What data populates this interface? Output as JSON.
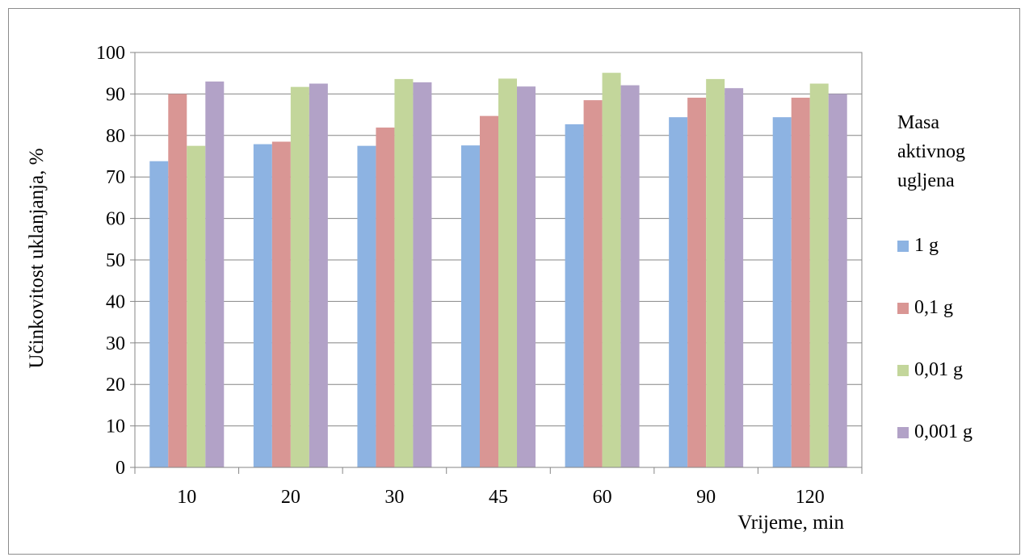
{
  "chart_data": {
    "type": "bar",
    "title": "",
    "xlabel": "Vrijeme, min",
    "ylabel": "Učinkovitost uklanjanja, %",
    "ylim": [
      0,
      100
    ],
    "yticks": [
      "0",
      "10",
      "20",
      "30",
      "40",
      "50",
      "60",
      "70",
      "80",
      "90",
      "100"
    ],
    "grid": true,
    "legend_title": [
      "Masa",
      "aktivnog",
      "ugljena"
    ],
    "legend_position": "right",
    "categories": [
      "10",
      "20",
      "30",
      "45",
      "60",
      "90",
      "120"
    ],
    "series": [
      {
        "name": "1 g",
        "color": "#8DB3E2",
        "values": [
          73.8,
          77.9,
          77.5,
          77.6,
          82.7,
          84.4,
          84.4
        ]
      },
      {
        "name": "0,1 g",
        "color": "#D99694",
        "values": [
          90.0,
          78.5,
          81.9,
          84.7,
          88.5,
          89.1,
          89.1
        ]
      },
      {
        "name": "0,01 g",
        "color": "#C3D69B",
        "values": [
          77.5,
          91.7,
          93.6,
          93.7,
          95.1,
          93.6,
          92.5
        ]
      },
      {
        "name": "0,001 g",
        "color": "#B2A2C7",
        "values": [
          93.0,
          92.5,
          92.8,
          91.8,
          92.1,
          91.4,
          90.0
        ]
      }
    ]
  }
}
